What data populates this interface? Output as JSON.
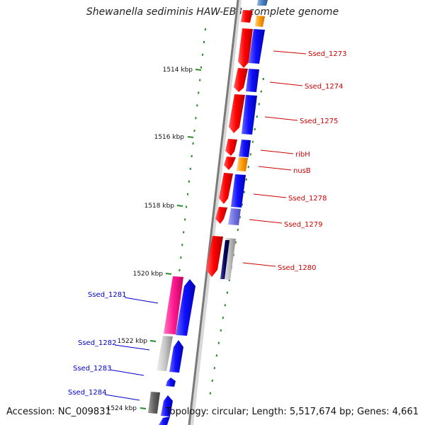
{
  "title": "Shewanella sediminis HAW-EB3, complete genome",
  "footer": {
    "accession": "Accession: NC_009831",
    "summary": "Topology: circular; Length: 5,517,674 bp; Genes: 4,661"
  },
  "colors": {
    "forward_label": "#cc0000",
    "reverse_label": "#0000cc",
    "tick": "#2a8a2a",
    "backbone": "#8a8a8a"
  },
  "ticks": [
    {
      "label": "1514 kbp"
    },
    {
      "label": "1516 kbp"
    },
    {
      "label": "1518 kbp"
    },
    {
      "label": "1520 kbp"
    },
    {
      "label": "1522 kbp"
    },
    {
      "label": "1524 kbp"
    }
  ],
  "right_labels": [
    {
      "name": "Ssed_1273"
    },
    {
      "name": "Ssed_1274"
    },
    {
      "name": "Ssed_1275"
    },
    {
      "name": "ribH"
    },
    {
      "name": "nusB"
    },
    {
      "name": "Ssed_1278"
    },
    {
      "name": "Ssed_1279"
    },
    {
      "name": "Ssed_1280"
    }
  ],
  "left_labels": [
    {
      "name": "Ssed_1281"
    },
    {
      "name": "Ssed_1282"
    },
    {
      "name": "Ssed_1283"
    },
    {
      "name": "Ssed_1284"
    }
  ]
}
